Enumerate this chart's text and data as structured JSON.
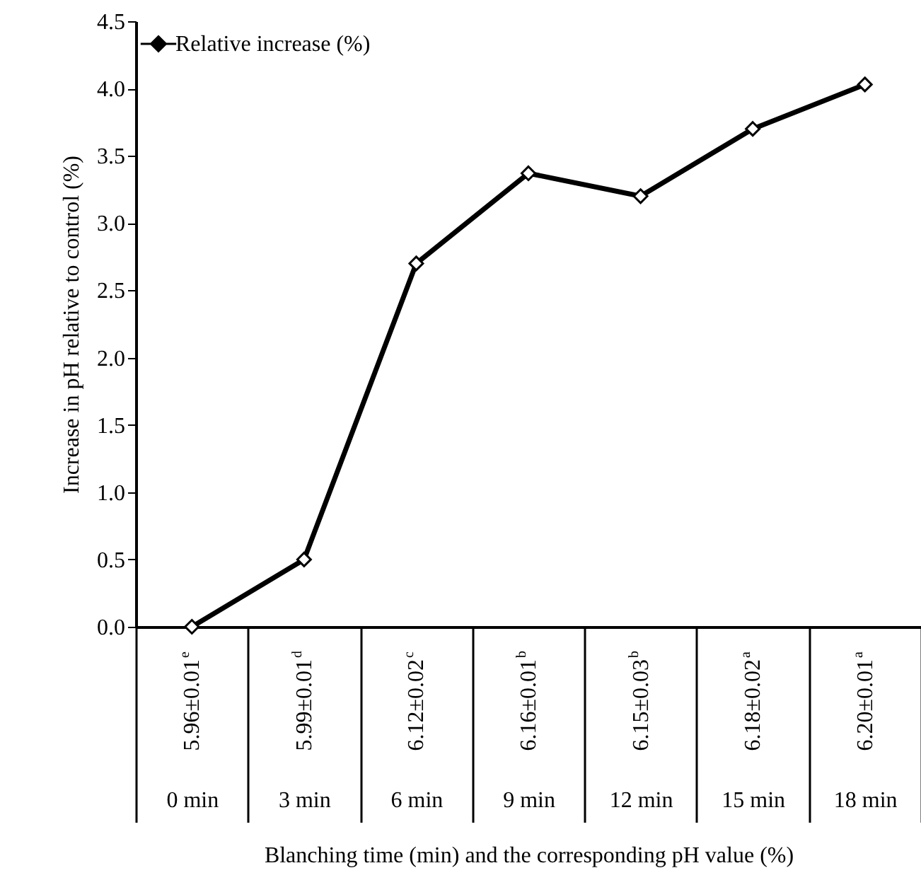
{
  "chart_data": {
    "type": "line",
    "xlabel": "Blanching time (min) and the corresponding pH value (%)",
    "ylabel": "Increase in pH relative to control (%)",
    "categories": [
      "0 min",
      "3 min",
      "6 min",
      "9 min",
      "12 min",
      "15 min",
      "18 min"
    ],
    "series": [
      {
        "name": "Relative increase (%)",
        "color": "#000000",
        "values": [
          0,
          0.5,
          2.7,
          3.37,
          3.2,
          3.7,
          4.03
        ]
      }
    ],
    "annotations": [
      "5.96±0.01$^{e}$",
      "5.99±0.01$^{d}$",
      "6.12±0.02$^{c}$",
      "6.16±0.01$^{b}$",
      "6.15±0.03$^{b}$",
      "6.18±0.02$^{a}$",
      "6.20±0.01$^{a}$"
    ],
    "ylim": [
      0,
      4.5
    ],
    "yticks": [
      {
        "value": 0,
        "label": "0.0"
      },
      0.5,
      {
        "value": 1,
        "label": "1.0"
      },
      1.5,
      {
        "value": 2,
        "label": "2.0"
      },
      2.5,
      {
        "value": 3,
        "label": "3.0"
      },
      3.5,
      {
        "value": 4,
        "label": "4.0"
      },
      4.5
    ],
    "grid": false,
    "legend": "top left",
    "marker": "diamond",
    "line_style": "solid"
  }
}
